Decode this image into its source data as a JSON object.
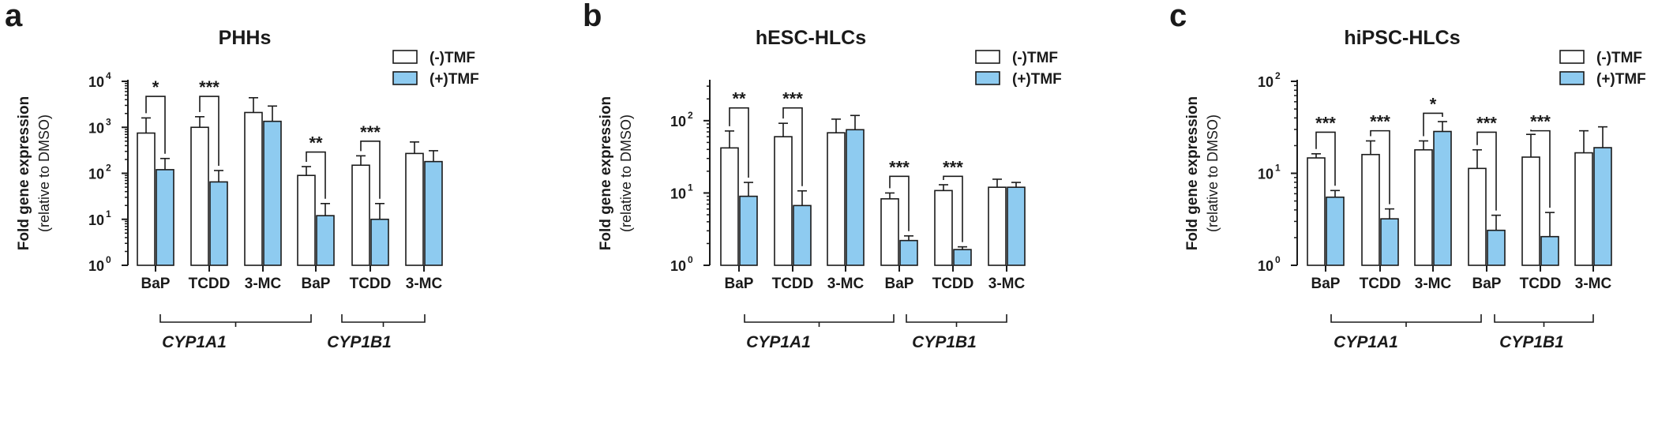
{
  "figure": {
    "legend": {
      "without": "(-)TMF",
      "with": "(+)TMF"
    },
    "colors": {
      "without": "#ffffff",
      "with": "#8ecbf0",
      "stroke": "#1a1a1a"
    },
    "ylabel_line1": "Fold gene expression",
    "ylabel_line2": "(relative to DMSO)",
    "gene_groups": [
      "CYP1A1",
      "CYP1B1"
    ]
  },
  "chart_data": [
    {
      "type": "bar",
      "panel": "a",
      "title": "PHHs",
      "yscale": "log",
      "ylim": [
        1,
        10000
      ],
      "yticks": [
        {
          "value": 1,
          "base": "10",
          "exp": "0"
        },
        {
          "value": 10,
          "base": "10",
          "exp": "1"
        },
        {
          "value": 100,
          "base": "10",
          "exp": "2"
        },
        {
          "value": 1000,
          "base": "10",
          "exp": "3"
        },
        {
          "value": 10000,
          "base": "10",
          "exp": "4"
        }
      ],
      "categories": [
        "BaP",
        "TCDD",
        "3-MC",
        "BaP",
        "TCDD",
        "3-MC"
      ],
      "groups": [
        "CYP1A1",
        "CYP1B1"
      ],
      "series": [
        {
          "name": "(-)TMF",
          "values": [
            750,
            1000,
            2100,
            90,
            150,
            270
          ],
          "errors": [
            1600,
            1700,
            4400,
            140,
            240,
            480
          ]
        },
        {
          "name": "(+)TMF",
          "values": [
            120,
            65,
            1350,
            12,
            10,
            180
          ],
          "errors": [
            210,
            115,
            2900,
            22,
            22,
            310
          ]
        }
      ],
      "significance": [
        {
          "index": 0,
          "label": "*",
          "level": 4700
        },
        {
          "index": 1,
          "label": "***",
          "level": 4700
        },
        {
          "index": 3,
          "label": "**",
          "level": 290
        },
        {
          "index": 4,
          "label": "***",
          "level": 500
        }
      ]
    },
    {
      "type": "bar",
      "panel": "b",
      "title": "hESC-HLCs",
      "yscale": "log",
      "ylim": [
        1,
        350
      ],
      "yticks": [
        {
          "value": 1,
          "base": "10",
          "exp": "0"
        },
        {
          "value": 10,
          "base": "10",
          "exp": "1"
        },
        {
          "value": 100,
          "base": "10",
          "exp": "2"
        }
      ],
      "categories": [
        "BaP",
        "TCDD",
        "3-MC",
        "BaP",
        "TCDD",
        "3-MC"
      ],
      "groups": [
        "CYP1A1",
        "CYP1B1"
      ],
      "series": [
        {
          "name": "(-)TMF",
          "values": [
            42,
            60,
            68,
            8.3,
            10.8,
            12
          ],
          "errors": [
            72,
            92,
            105,
            10,
            13,
            15.5
          ]
        },
        {
          "name": "(+)TMF",
          "values": [
            9,
            6.7,
            75,
            2.2,
            1.65,
            12
          ],
          "errors": [
            14,
            10.7,
            118,
            2.55,
            1.8,
            14
          ]
        }
      ],
      "significance": [
        {
          "index": 0,
          "label": "**",
          "level": 150
        },
        {
          "index": 1,
          "label": "***",
          "level": 150
        },
        {
          "index": 3,
          "label": "***",
          "level": 17
        },
        {
          "index": 4,
          "label": "***",
          "level": 17
        }
      ]
    },
    {
      "type": "bar",
      "panel": "c",
      "title": "hiPSC-HLCs",
      "yscale": "log",
      "ylim": [
        1,
        100
      ],
      "yticks": [
        {
          "value": 1,
          "base": "10",
          "exp": "0"
        },
        {
          "value": 10,
          "base": "10",
          "exp": "1"
        },
        {
          "value": 100,
          "base": "10",
          "exp": "2"
        }
      ],
      "categories": [
        "BaP",
        "TCDD",
        "3-MC",
        "BaP",
        "TCDD",
        "3-MC"
      ],
      "groups": [
        "CYP1A1",
        "CYP1B1"
      ],
      "series": [
        {
          "name": "(-)TMF",
          "values": [
            14.7,
            16,
            18,
            11.3,
            15,
            16.7
          ],
          "errors": [
            16.3,
            22.5,
            22.5,
            18,
            26.5,
            29
          ]
        },
        {
          "name": "(+)TMF",
          "values": [
            5.5,
            3.2,
            28.5,
            2.4,
            2.05,
            19
          ],
          "errors": [
            6.5,
            4.1,
            36.5,
            3.5,
            3.75,
            32
          ]
        }
      ],
      "significance": [
        {
          "index": 0,
          "label": "***",
          "level": 28
        },
        {
          "index": 1,
          "label": "***",
          "level": 29
        },
        {
          "index": 2,
          "label": "*",
          "level": 45
        },
        {
          "index": 3,
          "label": "***",
          "level": 28
        },
        {
          "index": 4,
          "label": "***",
          "level": 29
        }
      ]
    }
  ]
}
